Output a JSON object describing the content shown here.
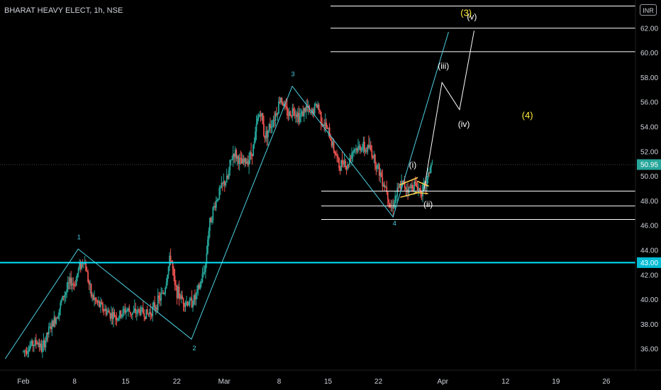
{
  "header": {
    "title": "BHARAT HEAVY ELECT, 1h, NSE",
    "currency": "INR"
  },
  "chart_data": {
    "type": "candlestick",
    "x_ticks": [
      "Feb",
      "8",
      "15",
      "22",
      "Mar",
      "8",
      "15",
      "22",
      "Apr",
      "12",
      "19",
      "26"
    ],
    "y_ticks": [
      "36.00",
      "38.00",
      "40.00",
      "42.00",
      "44.00",
      "46.00",
      "48.00",
      "50.00",
      "52.00",
      "54.00",
      "56.00",
      "58.00",
      "60.00",
      "62.00"
    ],
    "ylim": [
      35.0,
      64.0
    ],
    "last_price": "50.95",
    "support_level": "43.00",
    "horizontal_levels": [
      46.5,
      47.6,
      48.8,
      60.1,
      62.0,
      63.8
    ],
    "price_path": [
      {
        "d": 0.0,
        "p": 35.8
      },
      {
        "d": 1.0,
        "p": 36.3
      },
      {
        "d": 2.0,
        "p": 36.6
      },
      {
        "d": 2.5,
        "p": 35.9
      },
      {
        "d": 3.5,
        "p": 37.5
      },
      {
        "d": 4.5,
        "p": 38.6
      },
      {
        "d": 5.5,
        "p": 40.3
      },
      {
        "d": 6.5,
        "p": 41.5
      },
      {
        "d": 7.0,
        "p": 41.2
      },
      {
        "d": 7.6,
        "p": 42.6
      },
      {
        "d": 8.0,
        "p": 43.0
      },
      {
        "d": 8.3,
        "p": 43.3
      },
      {
        "d": 8.8,
        "p": 41.8
      },
      {
        "d": 9.3,
        "p": 40.3
      },
      {
        "d": 10.0,
        "p": 39.8
      },
      {
        "d": 11.0,
        "p": 39.2
      },
      {
        "d": 12.0,
        "p": 38.8
      },
      {
        "d": 13.0,
        "p": 38.6
      },
      {
        "d": 14.0,
        "p": 39.2
      },
      {
        "d": 15.0,
        "p": 38.9
      },
      {
        "d": 16.0,
        "p": 39.1
      },
      {
        "d": 17.0,
        "p": 38.8
      },
      {
        "d": 17.8,
        "p": 39.3
      },
      {
        "d": 18.5,
        "p": 39.9
      },
      {
        "d": 19.3,
        "p": 40.7
      },
      {
        "d": 19.8,
        "p": 42.5
      },
      {
        "d": 20.2,
        "p": 43.6
      },
      {
        "d": 20.7,
        "p": 41.0
      },
      {
        "d": 21.5,
        "p": 40.2
      },
      {
        "d": 22.0,
        "p": 39.9
      },
      {
        "d": 22.8,
        "p": 39.7
      },
      {
        "d": 23.5,
        "p": 40.1
      },
      {
        "d": 24.2,
        "p": 41.2
      },
      {
        "d": 24.7,
        "p": 42.3
      },
      {
        "d": 25.0,
        "p": 43.0
      },
      {
        "d": 25.2,
        "p": 45.0
      },
      {
        "d": 25.6,
        "p": 46.5
      },
      {
        "d": 26.2,
        "p": 47.7
      },
      {
        "d": 26.8,
        "p": 48.7
      },
      {
        "d": 27.4,
        "p": 49.4
      },
      {
        "d": 28.0,
        "p": 49.8
      },
      {
        "d": 28.3,
        "p": 51.0
      },
      {
        "d": 28.8,
        "p": 52.0
      },
      {
        "d": 29.3,
        "p": 51.5
      },
      {
        "d": 29.8,
        "p": 51.0
      },
      {
        "d": 30.5,
        "p": 51.2
      },
      {
        "d": 31.0,
        "p": 51.6
      },
      {
        "d": 31.6,
        "p": 52.6
      },
      {
        "d": 32.0,
        "p": 54.5
      },
      {
        "d": 32.5,
        "p": 55.3
      },
      {
        "d": 33.0,
        "p": 53.2
      },
      {
        "d": 33.6,
        "p": 53.9
      },
      {
        "d": 34.2,
        "p": 54.6
      },
      {
        "d": 34.8,
        "p": 55.5
      },
      {
        "d": 35.2,
        "p": 56.5
      },
      {
        "d": 35.8,
        "p": 55.4
      },
      {
        "d": 36.4,
        "p": 55.0
      },
      {
        "d": 37.0,
        "p": 55.5
      },
      {
        "d": 37.8,
        "p": 54.8
      },
      {
        "d": 38.3,
        "p": 55.2
      },
      {
        "d": 38.8,
        "p": 55.6
      },
      {
        "d": 39.3,
        "p": 54.9
      },
      {
        "d": 39.8,
        "p": 55.5
      },
      {
        "d": 40.3,
        "p": 55.8
      },
      {
        "d": 40.8,
        "p": 54.6
      },
      {
        "d": 41.3,
        "p": 54.1
      },
      {
        "d": 41.8,
        "p": 53.5
      },
      {
        "d": 42.3,
        "p": 52.6
      },
      {
        "d": 42.8,
        "p": 51.7
      },
      {
        "d": 43.3,
        "p": 50.6
      },
      {
        "d": 43.8,
        "p": 51.5
      },
      {
        "d": 44.3,
        "p": 50.6
      },
      {
        "d": 44.8,
        "p": 51.8
      },
      {
        "d": 45.3,
        "p": 52.3
      },
      {
        "d": 45.8,
        "p": 52.2
      },
      {
        "d": 46.3,
        "p": 52.5
      },
      {
        "d": 46.8,
        "p": 52.1
      },
      {
        "d": 47.3,
        "p": 52.4
      },
      {
        "d": 47.8,
        "p": 51.8
      },
      {
        "d": 48.3,
        "p": 51.0
      },
      {
        "d": 48.8,
        "p": 50.3
      },
      {
        "d": 49.3,
        "p": 49.5
      },
      {
        "d": 49.8,
        "p": 48.9
      },
      {
        "d": 50.1,
        "p": 47.8
      },
      {
        "d": 50.4,
        "p": 47.3
      },
      {
        "d": 50.8,
        "p": 48.2
      },
      {
        "d": 51.3,
        "p": 48.8
      },
      {
        "d": 51.8,
        "p": 49.4
      },
      {
        "d": 52.3,
        "p": 49.2
      },
      {
        "d": 52.8,
        "p": 48.9
      },
      {
        "d": 53.3,
        "p": 49.4
      },
      {
        "d": 53.8,
        "p": 49.2
      },
      {
        "d": 54.3,
        "p": 48.9
      },
      {
        "d": 54.8,
        "p": 48.9
      },
      {
        "d": 55.3,
        "p": 49.7
      },
      {
        "d": 55.6,
        "p": 50.7
      },
      {
        "d": 56.0,
        "p": 50.95
      }
    ],
    "wave_path": [
      {
        "d": -2.5,
        "p": 35.2
      },
      {
        "d": 7.5,
        "p": 44.1
      },
      {
        "d": 23.0,
        "p": 36.8
      },
      {
        "d": 36.8,
        "p": 57.3
      },
      {
        "d": 50.6,
        "p": 46.7
      },
      {
        "d": 58.2,
        "p": 61.7
      }
    ],
    "wave_labels": [
      {
        "text": "1",
        "d": 7.6,
        "p": 44.9
      },
      {
        "text": "2",
        "d": 23.4,
        "p": 35.9
      },
      {
        "text": "3",
        "d": 36.9,
        "p": 58.1
      },
      {
        "text": "4",
        "d": 50.8,
        "p": 46.0
      }
    ],
    "projection_path": [
      {
        "d": 54.8,
        "p": 48.8
      },
      {
        "d": 57.3,
        "p": 57.6
      },
      {
        "d": 59.7,
        "p": 55.4
      },
      {
        "d": 61.7,
        "p": 61.8
      }
    ],
    "sub_wave_labels": [
      {
        "text": "(i)",
        "d": 53.3,
        "p": 50.7
      },
      {
        "text": "(ii)",
        "d": 55.4,
        "p": 47.5
      },
      {
        "text": "(iii)",
        "d": 57.5,
        "p": 58.7
      },
      {
        "text": "(iv)",
        "d": 60.3,
        "p": 54.0
      },
      {
        "text": "(v)",
        "d": 61.4,
        "p": 62.7
      }
    ],
    "major_wave_labels": [
      {
        "text": "(3)",
        "d": 60.6,
        "p": 63.0
      },
      {
        "text": "(4)",
        "d": 69.0,
        "p": 54.7
      }
    ],
    "flag_lines": [
      {
        "d1": 51.5,
        "p1": 49.3,
        "d2": 54.0,
        "p2": 49.9
      },
      {
        "d1": 51.6,
        "p1": 48.3,
        "d2": 54.2,
        "p2": 48.7
      },
      {
        "d1": 53.6,
        "p1": 48.7,
        "d2": 55.4,
        "p2": 48.6
      },
      {
        "d1": 53.9,
        "p1": 49.6,
        "d2": 55.5,
        "p2": 49.2
      }
    ],
    "colors": {
      "background": "#000000",
      "up_candle": "#26a69a",
      "down_candle": "#ef5350",
      "wave_line": "#4dd0e1",
      "support_line": "#00e5ff",
      "level_line": "#ffffff",
      "projection_line": "#ffffff",
      "flag_line": "#ffd54f",
      "wave_label": "#4dd0e1",
      "sub_wave_label": "#ffffff",
      "major_wave_label": "#ffeb3b",
      "axis_text": "#d1d4dc",
      "last_price_badge": "#26a69a",
      "support_badge": "#00bcd4"
    }
  }
}
